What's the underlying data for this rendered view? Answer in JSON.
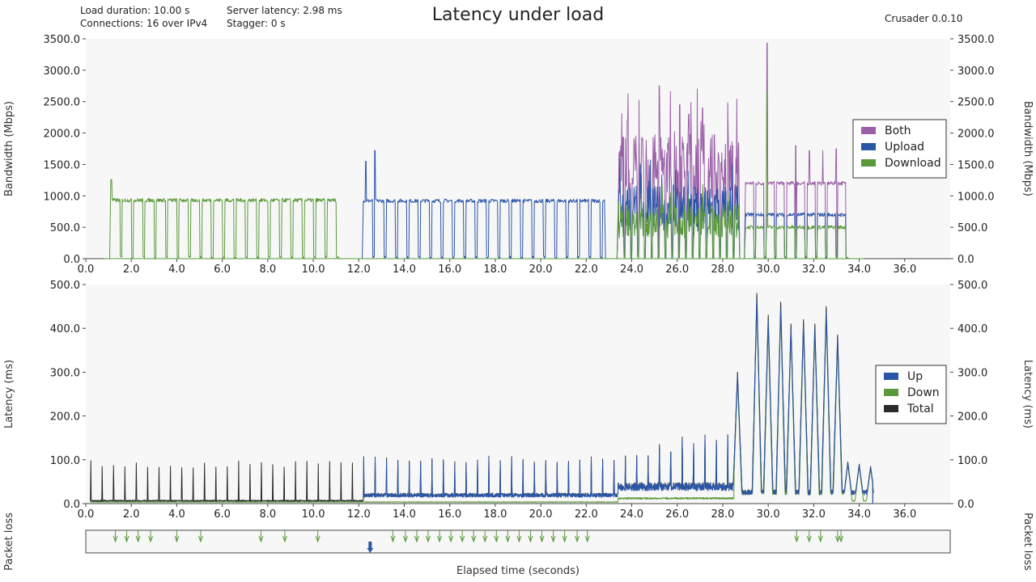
{
  "header": {
    "load_duration": "Load duration: 10.00 s",
    "connections": "Connections: 16 over IPv4",
    "server_latency": "Server latency: 2.98 ms",
    "stagger": "Stagger: 0 s",
    "title": "Latency under load",
    "version": "Crusader 0.0.10"
  },
  "colors": {
    "both": "#9b5fa8",
    "upload": "#2a56a8",
    "download": "#5a9a3a",
    "total": "#2b2b2b",
    "plot_bg": "#f7f7f7"
  },
  "x_label": "Elapsed time (seconds)",
  "chart_data": [
    {
      "id": "bandwidth",
      "type": "line",
      "ylabel": "Bandwidth (Mbps)",
      "ylim": [
        0,
        3500
      ],
      "xlim": [
        0,
        38
      ],
      "x_ticks": [
        "0.0",
        "2.0",
        "4.0",
        "6.0",
        "8.0",
        "10.0",
        "12.0",
        "14.0",
        "16.0",
        "18.0",
        "20.0",
        "22.0",
        "24.0",
        "26.0",
        "28.0",
        "30.0",
        "32.0",
        "34.0",
        "36.0"
      ],
      "y_ticks": [
        "0.0",
        "500.0",
        "1000.0",
        "1500.0",
        "2000.0",
        "2500.0",
        "3000.0",
        "3500.0"
      ],
      "legend": [
        "Both",
        "Upload",
        "Download"
      ],
      "legend_position": "right",
      "series": [
        {
          "name": "Download",
          "segments": [
            {
              "x_range": [
                1.1,
                11.1
              ],
              "level": 930,
              "cycle": 0.5,
              "first_peak": 1260
            },
            {
              "x_range": [
                23.4,
                28.7
              ],
              "level": 600,
              "cycle": 0.3,
              "noise": "high"
            },
            {
              "x_range": [
                29.0,
                33.5
              ],
              "level": 500,
              "cycle": 0.45,
              "peaks": [
                [
                  29.95,
                  2650
                ]
              ]
            }
          ]
        },
        {
          "name": "Upload",
          "segments": [
            {
              "x_range": [
                12.2,
                22.8
              ],
              "level": 920,
              "cycle": 0.5,
              "peaks": [
                [
                  12.3,
                  1550
                ],
                [
                  12.7,
                  1720
                ]
              ]
            },
            {
              "x_range": [
                23.4,
                28.7
              ],
              "level": 800,
              "cycle": 0.3,
              "noise": "high"
            },
            {
              "x_range": [
                29.0,
                33.5
              ],
              "level": 700,
              "cycle": 0.45
            }
          ]
        },
        {
          "name": "Both",
          "segments": [
            {
              "x_range": [
                23.4,
                28.7
              ],
              "level": 1400,
              "cycle": 0.3,
              "noise": "high",
              "peaks": [
                [
                  23.8,
                  2200
                ],
                [
                  25.2,
                  2750
                ],
                [
                  26.1,
                  2450
                ],
                [
                  26.5,
                  2300
                ],
                [
                  27.1,
                  2400
                ]
              ]
            },
            {
              "x_range": [
                29.0,
                33.5
              ],
              "level": 1200,
              "cycle": 0.45,
              "peaks": [
                [
                  29.95,
                  3430
                ],
                [
                  31.2,
                  1800
                ],
                [
                  31.8,
                  1720
                ],
                [
                  32.4,
                  1720
                ],
                [
                  33.0,
                  1750
                ]
              ]
            }
          ]
        }
      ]
    },
    {
      "id": "latency",
      "type": "line",
      "ylabel": "Latency (ms)",
      "ylim": [
        0,
        500
      ],
      "xlim": [
        0,
        38
      ],
      "x_ticks": [
        "0.0",
        "2.0",
        "4.0",
        "6.0",
        "8.0",
        "10.0",
        "12.0",
        "14.0",
        "16.0",
        "18.0",
        "20.0",
        "22.0",
        "24.0",
        "26.0",
        "28.0",
        "30.0",
        "32.0",
        "34.0",
        "36.0"
      ],
      "y_ticks": [
        "0.0",
        "100.0",
        "200.0",
        "300.0",
        "400.0",
        "500.0"
      ],
      "legend": [
        "Up",
        "Down",
        "Total"
      ],
      "legend_position": "right",
      "series": [
        {
          "name": "Total",
          "spikes_period_s": 0.5,
          "spike_height_ms": 85,
          "baseline_ms": [
            [
              0.2,
              5
            ],
            [
              12.2,
              15
            ],
            [
              23.4,
              30
            ],
            [
              28.6,
              20
            ],
            [
              34.6,
              5
            ]
          ],
          "large_spikes": [
            [
              28.65,
              300
            ],
            [
              29.5,
              480
            ],
            [
              30.0,
              430
            ],
            [
              30.55,
              460
            ],
            [
              31.0,
              410
            ],
            [
              31.55,
              420
            ],
            [
              32.05,
              410
            ],
            [
              32.55,
              450
            ],
            [
              33.05,
              385
            ],
            [
              33.5,
              95
            ],
            [
              34.0,
              90
            ],
            [
              34.5,
              85
            ]
          ]
        },
        {
          "name": "Up",
          "note": "tracks Total from 12.2 s onward"
        },
        {
          "name": "Down",
          "baseline_ms": [
            [
              0.2,
              3
            ],
            [
              23.4,
              10
            ],
            [
              28.6,
              20
            ],
            [
              33.5,
              5
            ]
          ]
        }
      ]
    },
    {
      "id": "packet_loss",
      "type": "scatter",
      "ylabel": "Packet loss",
      "xlim": [
        0,
        38
      ],
      "series": [
        {
          "name": "Download",
          "x": [
            1.3,
            1.8,
            2.3,
            2.85,
            4.0,
            5.05,
            7.7,
            8.75,
            10.2,
            13.5,
            14.05,
            14.55,
            15.05,
            15.55,
            16.05,
            16.55,
            17.05,
            17.55,
            18.05,
            18.55,
            19.05,
            19.55,
            20.05,
            20.55,
            21.05,
            21.6,
            22.05,
            31.25,
            31.8,
            32.3,
            33.05,
            33.2
          ]
        },
        {
          "name": "Upload",
          "x": [
            12.5
          ]
        }
      ]
    }
  ]
}
